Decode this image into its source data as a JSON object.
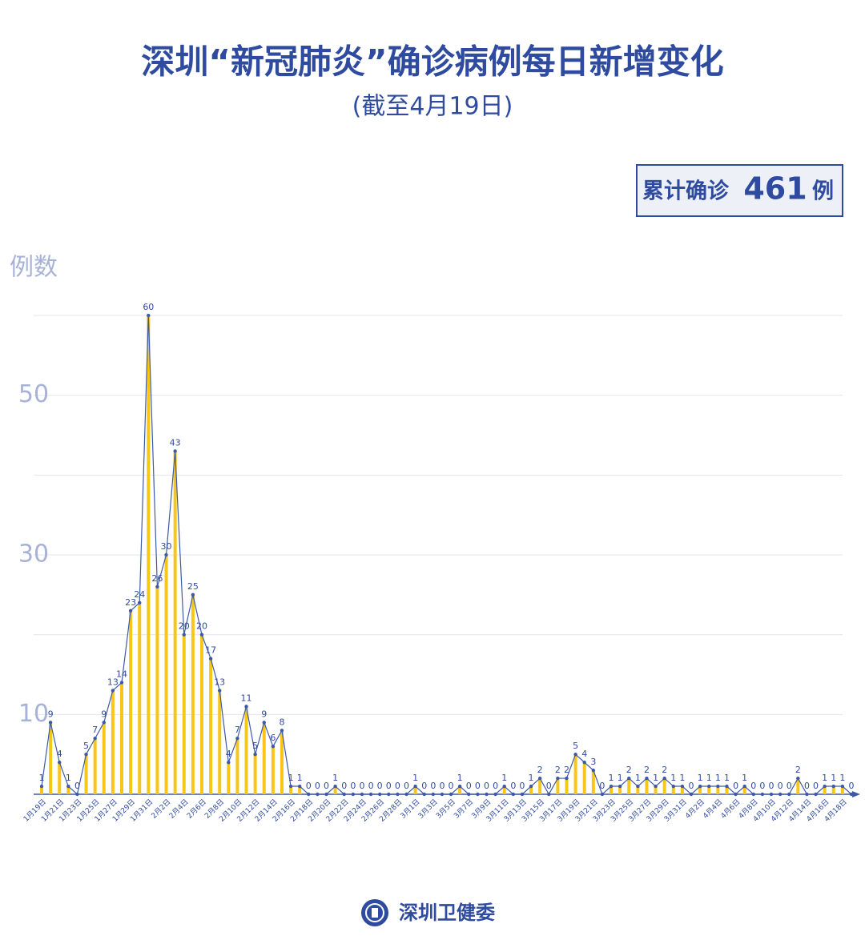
{
  "chart_data": {
    "type": "bar-line",
    "title": "深圳“新冠肺炎”确诊病例每日新增变化",
    "subtitle": "(截至4月19日)",
    "y_label": "例数",
    "categories": [
      "1月19日",
      null,
      "1月21日",
      null,
      "1月23日",
      null,
      "1月25日",
      null,
      "1月27日",
      null,
      "1月29日",
      null,
      "1月31日",
      null,
      "2月2日",
      null,
      "2月4日",
      null,
      "2月6日",
      null,
      "2月8日",
      null,
      "2月10日",
      null,
      "2月12日",
      null,
      "2月14日",
      null,
      "2月16日",
      null,
      "2月18日",
      null,
      "2月20日",
      null,
      "2月22日",
      null,
      "2月24日",
      null,
      "2月26日",
      null,
      "2月28日",
      null,
      "3月1日",
      null,
      "3月3日",
      null,
      "3月5日",
      null,
      "3月7日",
      null,
      "3月9日",
      null,
      "3月11日",
      null,
      "3月13日",
      null,
      "3月15日",
      null,
      "3月17日",
      null,
      "3月19日",
      null,
      "3月21日",
      null,
      "3月23日",
      null,
      "3月25日",
      null,
      "3月27日",
      null,
      "3月29日",
      null,
      "3月31日",
      null,
      "4月2日",
      null,
      "4月4日",
      null,
      "4月6日",
      null,
      "4月8日",
      null,
      "4月10日",
      null,
      "4月12日",
      null,
      "4月14日",
      null,
      "4月16日",
      null,
      "4月18日",
      null
    ],
    "values": [
      1,
      9,
      4,
      1,
      0,
      5,
      7,
      9,
      13,
      14,
      23,
      24,
      60,
      26,
      30,
      43,
      20,
      25,
      20,
      17,
      13,
      4,
      7,
      11,
      5,
      9,
      6,
      8,
      1,
      1,
      0,
      0,
      0,
      1,
      0,
      0,
      0,
      0,
      0,
      0,
      0,
      0,
      1,
      0,
      0,
      0,
      0,
      1,
      0,
      0,
      0,
      0,
      1,
      0,
      0,
      1,
      2,
      0,
      2,
      2,
      5,
      4,
      3,
      0,
      1,
      1,
      2,
      1,
      2,
      1,
      2,
      1,
      1,
      0,
      1,
      1,
      1,
      1,
      0,
      1,
      0,
      0,
      0,
      0,
      0,
      2,
      0,
      0,
      1,
      1,
      1,
      0
    ],
    "bar_color": "#f6c619",
    "line_color": "#3d5aa8",
    "ylim": [
      0,
      60
    ],
    "yticks": [
      10,
      30,
      50
    ],
    "grid_lines": [
      10,
      20,
      30,
      40,
      50,
      60
    ],
    "grid": true
  },
  "summary": {
    "label": "累计确诊",
    "total": 461,
    "unit": "例"
  },
  "footer": "深圳卫健委"
}
